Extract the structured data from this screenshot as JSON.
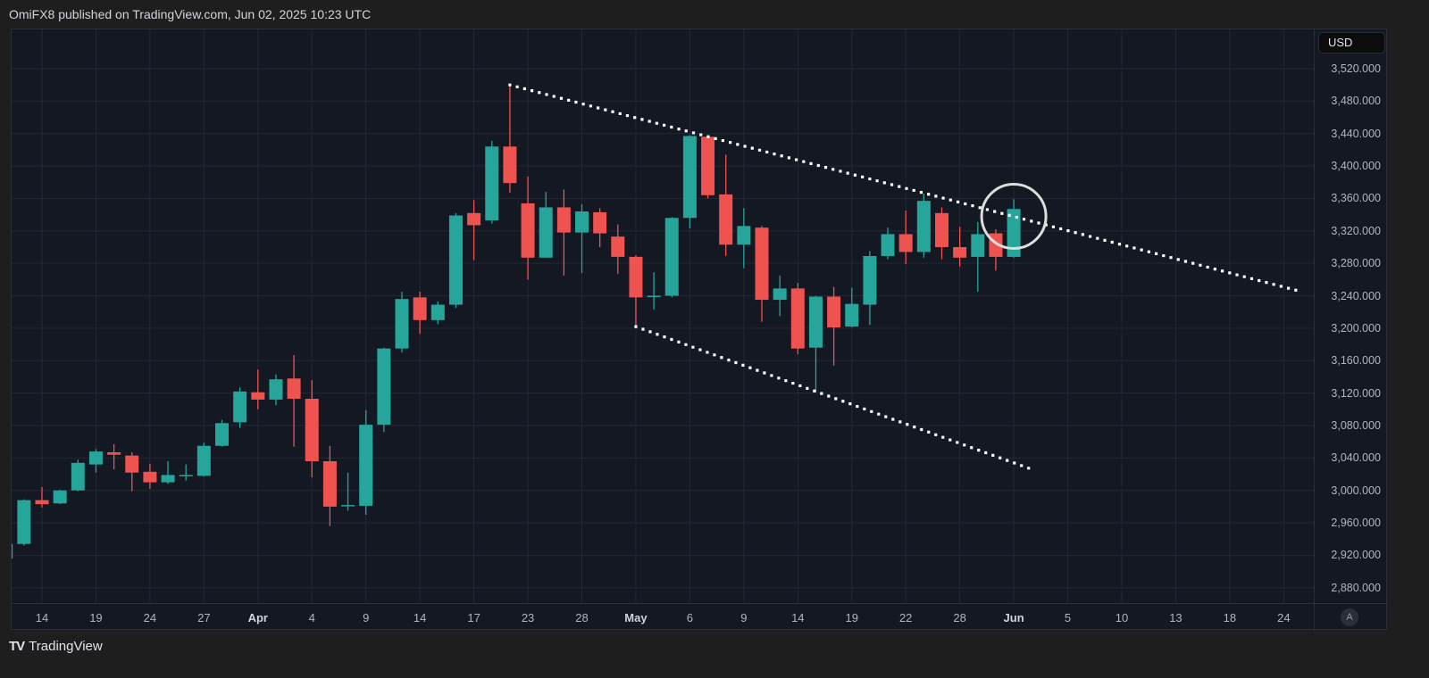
{
  "header": {
    "text": "OmiFX8 published on TradingView.com, Jun 02, 2025 10:23 UTC"
  },
  "footer": {
    "brand": "TradingView",
    "logo_icon": "tradingview-logo-icon"
  },
  "price_axis": {
    "currency_button": "USD",
    "auto_scale_button": "A"
  },
  "colors": {
    "up": "#26a69a",
    "down": "#ef5350",
    "background": "#141823",
    "grid": "#232734",
    "trendline": "#ffffff",
    "annotation_circle": "#dddddd"
  },
  "chart_data": {
    "type": "candlestick",
    "grid": true,
    "ylim": [
      2848,
      3537
    ],
    "y_ticks": [
      "3,520.000",
      "3,480.000",
      "3,440.000",
      "3,400.000",
      "3,360.000",
      "3,320.000",
      "3,280.000",
      "3,240.000",
      "3,200.000",
      "3,160.000",
      "3,120.000",
      "3,080.000",
      "3,040.000",
      "3,000.000",
      "2,960.000",
      "2,920.000",
      "2,880.000"
    ],
    "x_ticks": [
      {
        "label": "14",
        "date": "2025-03-14"
      },
      {
        "label": "19",
        "date": "2025-03-19"
      },
      {
        "label": "24",
        "date": "2025-03-24"
      },
      {
        "label": "27",
        "date": "2025-03-27"
      },
      {
        "label": "Apr",
        "date": "2025-04-01",
        "month": true
      },
      {
        "label": "4",
        "date": "2025-04-04"
      },
      {
        "label": "9",
        "date": "2025-04-09"
      },
      {
        "label": "14",
        "date": "2025-04-14"
      },
      {
        "label": "17",
        "date": "2025-04-17"
      },
      {
        "label": "23",
        "date": "2025-04-23"
      },
      {
        "label": "28",
        "date": "2025-04-28"
      },
      {
        "label": "May",
        "date": "2025-05-01",
        "month": true
      },
      {
        "label": "6",
        "date": "2025-05-06"
      },
      {
        "label": "9",
        "date": "2025-05-09"
      },
      {
        "label": "14",
        "date": "2025-05-14"
      },
      {
        "label": "19",
        "date": "2025-05-19"
      },
      {
        "label": "22",
        "date": "2025-05-22"
      },
      {
        "label": "28",
        "date": "2025-05-28"
      },
      {
        "label": "Jun",
        "date": "2025-06-02",
        "month": true
      },
      {
        "label": "5",
        "date": "2025-06-05"
      },
      {
        "label": "10",
        "date": "2025-06-10"
      },
      {
        "label": "13",
        "date": "2025-06-13"
      },
      {
        "label": "18",
        "date": "2025-06-18"
      },
      {
        "label": "24",
        "date": "2025-06-24"
      }
    ],
    "candles_fields": [
      "date",
      "open",
      "high",
      "low",
      "close"
    ],
    "candles": [
      [
        "2025-03-12",
        2916,
        2940,
        2906,
        2934
      ],
      [
        "2025-03-13",
        2934,
        2989,
        2932,
        2988
      ],
      [
        "2025-03-14",
        2988,
        3004,
        2979,
        2983
      ],
      [
        "2025-03-17",
        2984,
        3001,
        2983,
        3000
      ],
      [
        "2025-03-18",
        3000,
        3038,
        2999,
        3034
      ],
      [
        "2025-03-19",
        3032,
        3051,
        3022,
        3048
      ],
      [
        "2025-03-20",
        3047,
        3057,
        3026,
        3044
      ],
      [
        "2025-03-21",
        3043,
        3047,
        2999,
        3022
      ],
      [
        "2025-03-24",
        3023,
        3033,
        3002,
        3010
      ],
      [
        "2025-03-25",
        3010,
        3036,
        3008,
        3019
      ],
      [
        "2025-03-26",
        3018,
        3032,
        3012,
        3019
      ],
      [
        "2025-03-27",
        3018,
        3059,
        3017,
        3055
      ],
      [
        "2025-03-28",
        3055,
        3087,
        3054,
        3083
      ],
      [
        "2025-03-31",
        3084,
        3127,
        3077,
        3122
      ],
      [
        "2025-04-01",
        3121,
        3149,
        3100,
        3112
      ],
      [
        "2025-04-02",
        3112,
        3143,
        3105,
        3137
      ],
      [
        "2025-04-03",
        3138,
        3167,
        3054,
        3113
      ],
      [
        "2025-04-04",
        3113,
        3136,
        3016,
        3036
      ],
      [
        "2025-04-07",
        3036,
        3055,
        2956,
        2980
      ],
      [
        "2025-04-08",
        2981,
        3022,
        2975,
        2982
      ],
      [
        "2025-04-09",
        2981,
        3099,
        2970,
        3081
      ],
      [
        "2025-04-10",
        3081,
        3176,
        3072,
        3175
      ],
      [
        "2025-04-11",
        3175,
        3245,
        3170,
        3236
      ],
      [
        "2025-04-14",
        3238,
        3245,
        3193,
        3210
      ],
      [
        "2025-04-15",
        3210,
        3233,
        3205,
        3229
      ],
      [
        "2025-04-16",
        3229,
        3342,
        3225,
        3339
      ],
      [
        "2025-04-17",
        3342,
        3358,
        3284,
        3327
      ],
      [
        "2025-04-21",
        3333,
        3431,
        3329,
        3424
      ],
      [
        "2025-04-22",
        3424,
        3500,
        3367,
        3379
      ],
      [
        "2025-04-23",
        3354,
        3387,
        3260,
        3287
      ],
      [
        "2025-04-24",
        3287,
        3368,
        3287,
        3349
      ],
      [
        "2025-04-25",
        3349,
        3371,
        3265,
        3318
      ],
      [
        "2025-04-28",
        3318,
        3353,
        3268,
        3344
      ],
      [
        "2025-04-29",
        3343,
        3348,
        3300,
        3317
      ],
      [
        "2025-04-30",
        3313,
        3328,
        3267,
        3288
      ],
      [
        "2025-05-01",
        3288,
        3290,
        3202,
        3238
      ],
      [
        "2025-05-02",
        3239,
        3269,
        3223,
        3240
      ],
      [
        "2025-05-05",
        3240,
        3337,
        3238,
        3336
      ],
      [
        "2025-05-06",
        3336,
        3438,
        3323,
        3437
      ],
      [
        "2025-05-07",
        3436,
        3438,
        3360,
        3364
      ],
      [
        "2025-05-08",
        3365,
        3414,
        3289,
        3303
      ],
      [
        "2025-05-09",
        3303,
        3348,
        3274,
        3326
      ],
      [
        "2025-05-12",
        3324,
        3326,
        3208,
        3235
      ],
      [
        "2025-05-13",
        3235,
        3265,
        3215,
        3249
      ],
      [
        "2025-05-14",
        3249,
        3256,
        3168,
        3175
      ],
      [
        "2025-05-15",
        3176,
        3240,
        3121,
        3239
      ],
      [
        "2025-05-16",
        3239,
        3251,
        3154,
        3201
      ],
      [
        "2025-05-19",
        3202,
        3250,
        3201,
        3230
      ],
      [
        "2025-05-20",
        3229,
        3295,
        3204,
        3289
      ],
      [
        "2025-05-21",
        3289,
        3324,
        3285,
        3316
      ],
      [
        "2025-05-22",
        3316,
        3345,
        3279,
        3294
      ],
      [
        "2025-05-23",
        3294,
        3366,
        3287,
        3357
      ],
      [
        "2025-05-27",
        3342,
        3349,
        3285,
        3300
      ],
      [
        "2025-05-28",
        3300,
        3325,
        3276,
        3287
      ],
      [
        "2025-05-29",
        3288,
        3331,
        3245,
        3316
      ],
      [
        "2025-05-30",
        3317,
        3322,
        3271,
        3288
      ],
      [
        "2025-06-02",
        3288,
        3359,
        3287,
        3347
      ]
    ],
    "trendlines": [
      {
        "style": "dotted",
        "from": {
          "date": "2025-04-22",
          "price": 3500
        },
        "to": {
          "date": "2025-06-25",
          "price": 3245
        }
      },
      {
        "style": "dotted",
        "from": {
          "date": "2025-05-01",
          "price": 3202
        },
        "to": {
          "date": "2025-06-03",
          "price": 3026
        }
      }
    ],
    "annotations": [
      {
        "shape": "circle",
        "date": "2025-06-02",
        "price": 3338
      }
    ]
  }
}
